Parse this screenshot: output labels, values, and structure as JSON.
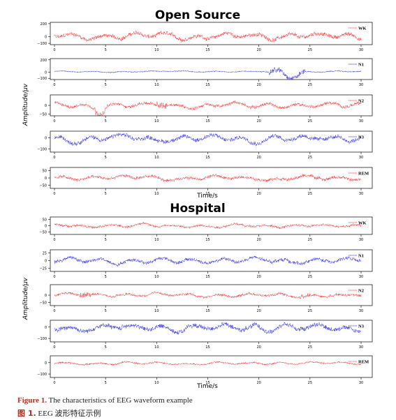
{
  "colors": {
    "red": "#ff2020",
    "blue": "#1f1fe6",
    "caption_accent": "#b0301f"
  },
  "chart_data": [
    {
      "type": "line",
      "title": "Open Source",
      "ylabel": "Amplitude/μv",
      "xlabel": "Time/s",
      "xlim": [
        0,
        30
      ],
      "xticks": [
        0,
        5,
        10,
        15,
        20,
        25,
        30
      ],
      "panels": [
        {
          "name": "WK",
          "color": "red",
          "ylim": [
            -120,
            220
          ],
          "yticks": [
            200,
            0,
            -100
          ],
          "amp": 55,
          "bursts": []
        },
        {
          "name": "N1",
          "color": "blue",
          "ylim": [
            -120,
            220
          ],
          "yticks": [
            200,
            0,
            -100
          ],
          "amp": 12,
          "bursts": [
            [
              21,
              24.5,
              7
            ]
          ]
        },
        {
          "name": "N2",
          "color": "red",
          "ylim": [
            -60,
            60
          ],
          "yticks": [
            0,
            -50
          ],
          "amp": 16,
          "bursts": [
            [
              4,
              5,
              2.5
            ],
            [
              10,
              11,
              2.5
            ]
          ]
        },
        {
          "name": "N3",
          "color": "blue",
          "ylim": [
            -130,
            60
          ],
          "yticks": [
            0,
            -100
          ],
          "amp": 35,
          "bursts": []
        },
        {
          "name": "REM",
          "color": "red",
          "ylim": [
            -70,
            70
          ],
          "yticks": [
            50,
            0,
            -50
          ],
          "amp": 18,
          "bursts": []
        }
      ]
    },
    {
      "type": "line",
      "title": "Hospital",
      "ylabel": "Amplitude/μv",
      "xlabel": "Time/s",
      "xlim": [
        0,
        30
      ],
      "xticks": [
        0,
        5,
        10,
        15,
        20,
        25,
        30
      ],
      "panels": [
        {
          "name": "WK",
          "color": "red",
          "ylim": [
            -70,
            70
          ],
          "yticks": [
            50,
            0,
            -50
          ],
          "amp": 16,
          "bursts": []
        },
        {
          "name": "N1",
          "color": "blue",
          "ylim": [
            -35,
            35
          ],
          "yticks": [
            25,
            0,
            -25
          ],
          "amp": 10,
          "bursts": []
        },
        {
          "name": "N2",
          "color": "red",
          "ylim": [
            -70,
            70
          ],
          "yticks": [
            0,
            -50
          ],
          "amp": 14,
          "bursts": [
            [
              2.5,
              3.5,
              2.5
            ],
            [
              24,
              25,
              2
            ]
          ]
        },
        {
          "name": "N3",
          "color": "blue",
          "ylim": [
            -130,
            60
          ],
          "yticks": [
            0,
            -100
          ],
          "amp": 38,
          "bursts": []
        },
        {
          "name": "REM",
          "color": "red",
          "ylim": [
            -130,
            60
          ],
          "yticks": [
            0,
            -100
          ],
          "amp": 12,
          "bursts": []
        }
      ]
    }
  ],
  "caption": {
    "en_label": "Figure 1.",
    "en_text": "The characteristics of EEG waveform example",
    "cn_label": "图 1.",
    "cn_text": "EEG 波形特征示例"
  }
}
